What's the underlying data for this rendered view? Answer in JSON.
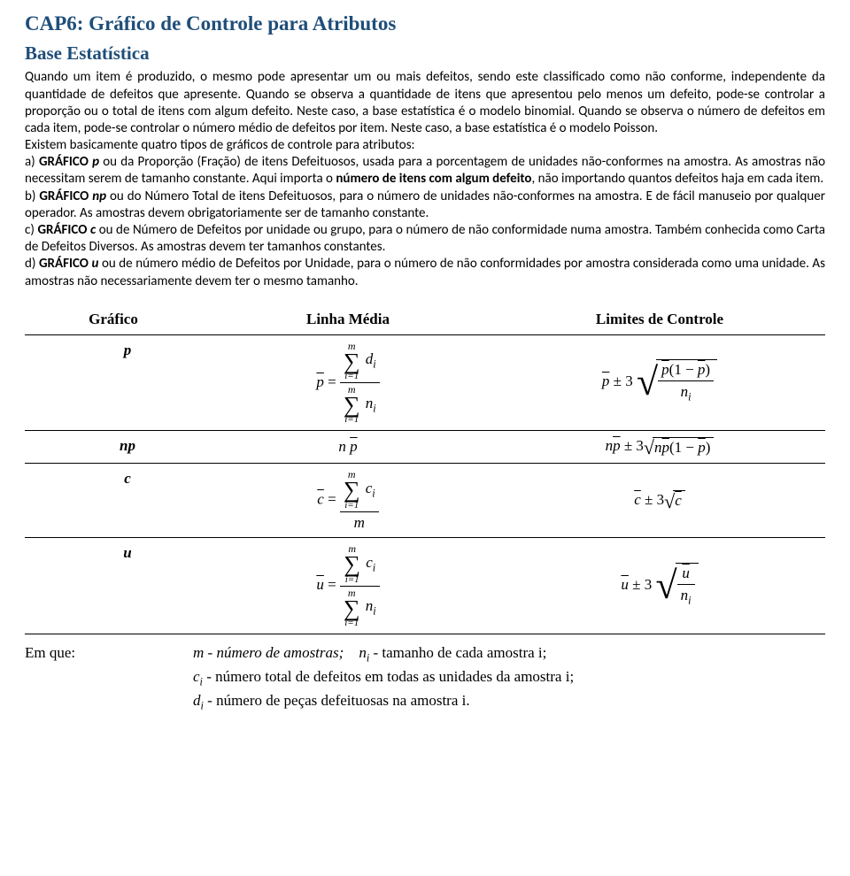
{
  "title": "CAP6: Gráfico de Controle para Atributos",
  "subtitle": "Base Estatística",
  "para1": "Quando um item é produzido, o mesmo pode apresentar um ou mais defeitos, sendo este classificado como não conforme, independente da quantidade de defeitos que apresente. Quando se observa a quantidade de itens que apresentou pelo menos um defeito, pode-se controlar a proporção ou o total de itens com algum defeito. Neste caso, a base estatística é o modelo binomial. Quando se observa o número de defeitos em cada item, pode-se controlar o número médio de defeitos por item. Neste caso, a base estatística é o modelo Poisson.",
  "para2": "Existem basicamente quatro tipos de gráficos de controle para atributos:",
  "item_a_pre": "a) ",
  "item_a_bold1": "GRÁFICO ",
  "item_a_sym": "p",
  "item_a_mid": " ou da Proporção (Fração) de itens Defeituosos, usada para a porcentagem de unidades não-conformes na amostra. As amostras não necessitam serem de tamanho constante. Aqui importa o ",
  "item_a_bold2": "número de itens com algum defeito",
  "item_a_tail": ", não importando quantos defeitos haja em cada item.",
  "item_b_pre": "b) ",
  "item_b_bold": "GRÁFICO ",
  "item_b_sym": "np",
  "item_b_tail": " ou do Número Total de itens Defeituosos, para o número de unidades não-conformes na amostra. E de fácil manuseio por qualquer operador. As amostras devem obrigatoriamente ser de tamanho constante.",
  "item_c_pre": "c) ",
  "item_c_bold": "GRÁFICO ",
  "item_c_sym": "c",
  "item_c_tail": " ou de Número de Defeitos por unidade ou grupo, para o número de não conformidade numa amostra. Também conhecida como Carta de Defeitos Diversos. As amostras devem ter tamanhos constantes.",
  "item_d_pre": "d) ",
  "item_d_bold": "GRÁFICO ",
  "item_d_sym": "u",
  "item_d_tail": " ou de número médio de Defeitos por Unidade, para o número de não conformidades por amostra considerada como uma unidade. As amostras não necessariamente devem ter o mesmo tamanho.",
  "table": {
    "headers": [
      "Gráfico",
      "Linha Média",
      "Limites de Controle"
    ],
    "rows": [
      "p",
      "np",
      "c",
      "u"
    ]
  },
  "legend": {
    "label": "Em que:",
    "m": "m - número de amostras;",
    "ni": " - tamanho de cada amostra i;",
    "ci": " - número total de defeitos em todas as unidades da amostra i;",
    "di": " - número de peças defeituosas na amostra i."
  }
}
